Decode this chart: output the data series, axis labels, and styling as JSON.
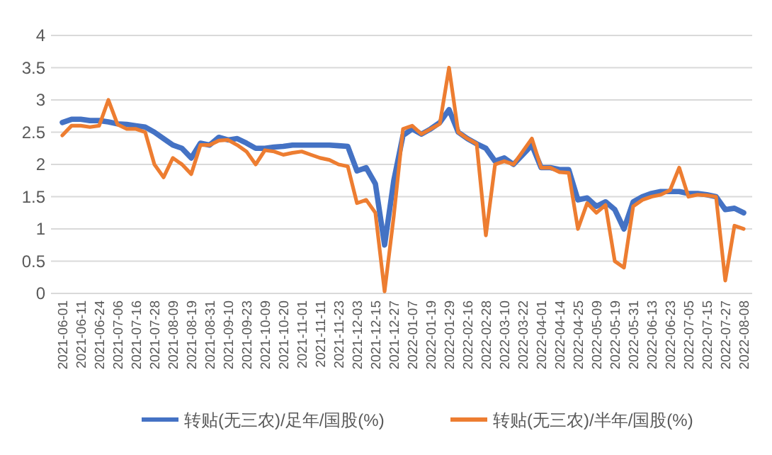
{
  "chart_data": {
    "type": "line",
    "categories": [
      "2021-06-01",
      null,
      "2021-06-11",
      null,
      "2021-06-24",
      null,
      "2021-07-06",
      null,
      "2021-07-16",
      null,
      "2021-07-28",
      null,
      "2021-08-09",
      null,
      "2021-08-19",
      null,
      "2021-08-31",
      null,
      "2021-09-10",
      null,
      "2021-09-23",
      null,
      "2021-10-09",
      null,
      "2021-10-20",
      null,
      "2021-11-01",
      null,
      "2021-11-11",
      null,
      "2021-11-23",
      null,
      "2021-12-03",
      null,
      "2021-12-15",
      null,
      "2021-12-27",
      null,
      "2022-01-07",
      null,
      "2022-01-19",
      null,
      "2022-01-29",
      null,
      "2022-02-16",
      null,
      "2022-02-28",
      null,
      "2022-03-10",
      null,
      "2022-03-22",
      null,
      "2022-04-01",
      null,
      "2022-04-14",
      null,
      "2022-04-25",
      null,
      "2022-05-09",
      null,
      "2022-05-19",
      null,
      "2022-05-31",
      null,
      "2022-06-13",
      null,
      "2022-06-23",
      null,
      "2022-07-05",
      null,
      "2022-07-15",
      null,
      "2022-07-27",
      null,
      "2022-08-08"
    ],
    "series": [
      {
        "name": "转贴(无三农)/足年/国股(%)",
        "color": "#4472c4",
        "values": [
          2.65,
          2.7,
          2.7,
          2.68,
          2.68,
          2.66,
          2.63,
          2.62,
          2.6,
          2.58,
          2.5,
          2.4,
          2.3,
          2.25,
          2.1,
          2.33,
          2.3,
          2.42,
          2.38,
          2.4,
          2.33,
          2.25,
          2.25,
          2.27,
          2.28,
          2.3,
          2.3,
          2.3,
          2.3,
          2.3,
          2.29,
          2.28,
          1.9,
          1.95,
          1.7,
          0.75,
          1.75,
          2.45,
          2.55,
          2.47,
          2.55,
          2.65,
          2.85,
          2.5,
          2.4,
          2.32,
          2.25,
          2.05,
          2.1,
          2.0,
          2.15,
          2.3,
          1.95,
          1.95,
          1.92,
          1.92,
          1.45,
          1.48,
          1.35,
          1.42,
          1.3,
          1.0,
          1.42,
          1.5,
          1.55,
          1.58,
          1.58,
          1.58,
          1.55,
          1.55,
          1.53,
          1.5,
          1.3,
          1.32,
          1.25
        ]
      },
      {
        "name": "转贴(无三农)/半年/国股(%)",
        "color": "#ed7d31",
        "values": [
          2.45,
          2.6,
          2.6,
          2.58,
          2.6,
          3.0,
          2.62,
          2.55,
          2.55,
          2.5,
          2.0,
          1.8,
          2.1,
          2.0,
          1.85,
          2.3,
          2.3,
          2.37,
          2.38,
          2.3,
          2.2,
          2.0,
          2.22,
          2.2,
          2.15,
          2.18,
          2.2,
          2.15,
          2.1,
          2.07,
          2.0,
          1.97,
          1.4,
          1.45,
          1.25,
          0.03,
          1.2,
          2.55,
          2.6,
          2.47,
          2.55,
          2.63,
          3.5,
          2.5,
          2.4,
          2.32,
          0.9,
          2.0,
          2.05,
          2.0,
          2.2,
          2.4,
          1.95,
          1.95,
          1.88,
          1.87,
          1.0,
          1.4,
          1.25,
          1.37,
          0.5,
          0.4,
          1.35,
          1.45,
          1.5,
          1.53,
          1.6,
          1.95,
          1.5,
          1.53,
          1.52,
          1.5,
          0.2,
          1.05,
          1.0
        ]
      }
    ],
    "ylim": [
      0,
      4
    ],
    "yticks": [
      0,
      0.5,
      1,
      1.5,
      2,
      2.5,
      3,
      3.5,
      4
    ],
    "grid": "y",
    "legend": "bottom",
    "marker": "none",
    "line_style": "solid"
  }
}
